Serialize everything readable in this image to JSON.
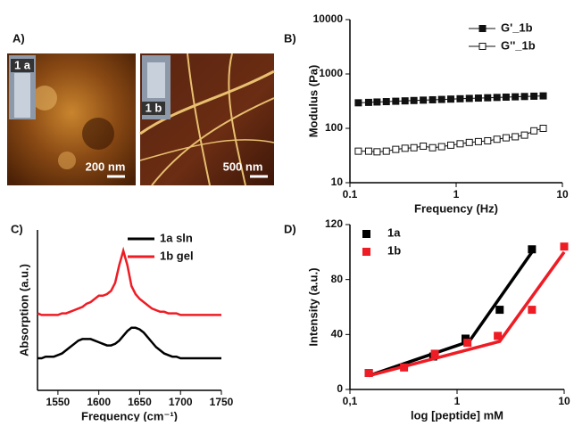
{
  "panel_a": {
    "label": "A)",
    "images": [
      {
        "tag": "1 a",
        "scale": "200 nm"
      },
      {
        "tag": "1 b",
        "scale": "500 nm"
      }
    ]
  },
  "chart_data": [
    {
      "type": "line",
      "panel_label": "B)",
      "ylabel": "Modulus (Pa)",
      "xlabel": "Frequency (Hz)",
      "log_x": true,
      "log_y": true,
      "xlim": [
        0.1,
        10
      ],
      "ylim": [
        10,
        10000
      ],
      "xticks": [
        0.1,
        1,
        10
      ],
      "yticks": [
        10,
        100,
        1000,
        10000
      ],
      "legend": "top-right",
      "x": [
        0.12,
        0.15,
        0.18,
        0.22,
        0.27,
        0.33,
        0.4,
        0.49,
        0.6,
        0.73,
        0.89,
        1.09,
        1.33,
        1.62,
        1.98,
        2.42,
        2.95,
        3.6,
        4.4,
        5.4,
        6.6
      ],
      "series": [
        {
          "name": "G'_1b",
          "color": "#111111",
          "marker": "filled",
          "values": [
            295,
            300,
            305,
            310,
            315,
            320,
            325,
            330,
            335,
            340,
            345,
            350,
            355,
            360,
            365,
            370,
            375,
            380,
            385,
            390,
            395
          ]
        },
        {
          "name": "G''_1b",
          "color": "#111111",
          "marker": "open",
          "values": [
            38,
            38,
            37,
            38,
            41,
            43,
            44,
            47,
            44,
            46,
            49,
            52,
            55,
            57,
            59,
            63,
            67,
            70,
            75,
            90,
            100
          ]
        }
      ]
    },
    {
      "type": "line",
      "panel_label": "C)",
      "ylabel": "Absorption (a.u.)",
      "xlabel": "Frequency (cm⁻¹)",
      "xlim": [
        1525,
        1750
      ],
      "ylim": [
        0,
        1
      ],
      "xticks": [
        1550,
        1600,
        1650,
        1700,
        1750
      ],
      "legend": "top-right",
      "x": [
        1525,
        1530,
        1535,
        1540,
        1545,
        1550,
        1555,
        1560,
        1565,
        1570,
        1575,
        1580,
        1585,
        1590,
        1595,
        1600,
        1605,
        1610,
        1615,
        1620,
        1625,
        1630,
        1635,
        1640,
        1645,
        1650,
        1655,
        1660,
        1665,
        1670,
        1675,
        1680,
        1685,
        1690,
        1695,
        1700,
        1705,
        1710,
        1715,
        1720,
        1725,
        1730,
        1735,
        1740,
        1745,
        1750
      ],
      "series": [
        {
          "name": "1a sln",
          "color": "#000000",
          "values": [
            0.2,
            0.2,
            0.21,
            0.21,
            0.21,
            0.22,
            0.23,
            0.25,
            0.27,
            0.29,
            0.31,
            0.32,
            0.32,
            0.32,
            0.31,
            0.3,
            0.29,
            0.28,
            0.28,
            0.29,
            0.31,
            0.34,
            0.37,
            0.39,
            0.39,
            0.38,
            0.36,
            0.33,
            0.3,
            0.27,
            0.25,
            0.23,
            0.22,
            0.21,
            0.21,
            0.2,
            0.2,
            0.2,
            0.2,
            0.2,
            0.2,
            0.2,
            0.2,
            0.2,
            0.2,
            0.2
          ]
        },
        {
          "name": "1b gel",
          "color": "#ee1c24",
          "values": [
            0.48,
            0.47,
            0.47,
            0.47,
            0.47,
            0.47,
            0.48,
            0.48,
            0.49,
            0.5,
            0.51,
            0.52,
            0.54,
            0.55,
            0.57,
            0.59,
            0.59,
            0.6,
            0.62,
            0.67,
            0.78,
            0.87,
            0.78,
            0.65,
            0.6,
            0.57,
            0.55,
            0.53,
            0.51,
            0.5,
            0.49,
            0.49,
            0.48,
            0.48,
            0.48,
            0.47,
            0.47,
            0.47,
            0.47,
            0.47,
            0.47,
            0.47,
            0.47,
            0.47,
            0.47,
            0.47
          ]
        }
      ]
    },
    {
      "type": "scatter",
      "panel_label": "D)",
      "ylabel": "Intensity (a.u.)",
      "xlabel": "log [peptide] mM",
      "log_x": true,
      "xlim": [
        0.1,
        10
      ],
      "ylim": [
        0,
        120
      ],
      "xticks": [
        {
          "value": 0.1,
          "label": "0,1"
        },
        1,
        10
      ],
      "yticks": [
        0,
        40,
        80,
        120
      ],
      "legend": "top-left",
      "series": [
        {
          "name": "1a",
          "color": "#000000",
          "x": [
            0.15,
            0.6,
            1.2,
            2.5,
            5
          ],
          "values": [
            12,
            24,
            37,
            58,
            102
          ],
          "fit": {
            "x": [
              0.15,
              1.3,
              5
            ],
            "values": [
              10,
              35,
              100
            ]
          }
        },
        {
          "name": "1b",
          "color": "#ee1c24",
          "x": [
            0.15,
            0.32,
            0.62,
            1.25,
            2.4,
            5,
            10
          ],
          "values": [
            12,
            16,
            26,
            34,
            39,
            58,
            104
          ],
          "fit": {
            "x": [
              0.15,
              2.5,
              10
            ],
            "values": [
              10,
              35,
              100
            ]
          }
        }
      ]
    }
  ]
}
